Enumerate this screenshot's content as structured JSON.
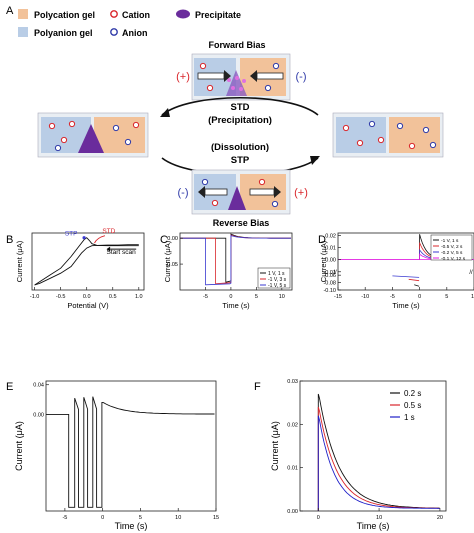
{
  "panel_letters": [
    "A",
    "B",
    "C",
    "D",
    "E",
    "F"
  ],
  "schematic": {
    "legend": {
      "polycation_gel": "Polycation gel",
      "polyanion_gel": "Polyanion gel",
      "cation": "Cation",
      "anion": "Anion",
      "precipitate": "Precipitate"
    },
    "forward_bias": "Forward Bias",
    "reverse_bias": "Reverse Bias",
    "plus": "(+)",
    "minus": "(-)",
    "std_line1": "STD",
    "std_line2": "(Precipitation)",
    "stp_line1": "(Dissolution)",
    "stp_line2": "STP",
    "colors": {
      "polycation": "#f2c29a",
      "polyanion": "#b9cde6",
      "cation": "#d9262b",
      "anion": "#2f3aa8",
      "precipitate": "#6a2c9c",
      "plus_text": "#d9262b",
      "minus_text": "#2f3aa8"
    }
  },
  "chart_data": [
    {
      "panel": "B",
      "type": "line",
      "xlabel": "Potential (V)",
      "ylabel": "Current (μA)",
      "xticks": [
        "-1.0",
        "-0.5",
        "0.0",
        "0.5",
        "1.0"
      ],
      "xlim": [
        -1.05,
        1.1
      ],
      "ylim": [
        -0.12,
        0.05
      ],
      "annotations": {
        "stp": "STP",
        "std": "STD",
        "start": "Start scan"
      },
      "series": [
        {
          "values_x": [
            -1.0,
            -0.9,
            -0.7,
            -0.5,
            -0.3,
            -0.15,
            -0.05,
            0.0,
            0.05,
            0.1,
            0.2,
            0.4,
            0.6,
            0.8,
            1.0
          ],
          "values_y": [
            -0.105,
            -0.095,
            -0.075,
            -0.055,
            -0.02,
            0.01,
            0.03,
            0.036,
            0.028,
            0.018,
            0.013,
            0.012,
            0.012,
            0.012,
            0.012
          ]
        },
        {
          "values_x": [
            1.0,
            0.8,
            0.6,
            0.4,
            0.2,
            0.1,
            0.0,
            -0.1,
            -0.3,
            -0.5,
            -0.7,
            -0.9,
            -1.0
          ],
          "values_y": [
            0.015,
            0.015,
            0.014,
            0.014,
            0.013,
            0.012,
            0.005,
            -0.01,
            -0.05,
            -0.07,
            -0.085,
            -0.1,
            -0.105
          ]
        }
      ]
    },
    {
      "panel": "C",
      "type": "line",
      "xlabel": "Time (s)",
      "ylabel": "Current (μA)",
      "xticks": [
        "-5",
        "0",
        "5",
        "10"
      ],
      "yticks": [
        "0.00",
        "-0.05"
      ],
      "xlim": [
        -10,
        12
      ],
      "ylim": [
        -0.1,
        0.01
      ],
      "series": [
        {
          "name": "1 V, 1 s",
          "color": "#111111",
          "step_start": -1,
          "low": -0.085,
          "peak": 0.008
        },
        {
          "name": "-1 V, 3 s",
          "color": "#d9262b",
          "step_start": -3,
          "low": -0.088,
          "peak": 0.006
        },
        {
          "name": "-1 V, 5 s",
          "color": "#3a3ad0",
          "step_start": -5,
          "low": -0.09,
          "peak": 0.005
        }
      ]
    },
    {
      "panel": "D",
      "type": "line",
      "xlabel": "Time (s)",
      "ylabel": "Current (μA)",
      "xticks": [
        "-15",
        "-10",
        "-5",
        "0",
        "5",
        "10"
      ],
      "yticks": [
        "0.02",
        "0.01",
        "0.00",
        "-0.01",
        "-0.06",
        "-0.08",
        "-0.10"
      ],
      "xlim": [
        -15,
        10
      ],
      "series": [
        {
          "name": "-1 V, 1 s",
          "color": "#111111"
        },
        {
          "name": "-0.5 V, 2 s",
          "color": "#d9262b"
        },
        {
          "name": "-0.2 V, 5 s",
          "color": "#3a3ad0"
        },
        {
          "name": "-0.1 V, 12 s",
          "color": "#e01ee0"
        }
      ]
    },
    {
      "panel": "E",
      "type": "line",
      "xlabel": "Time (s)",
      "ylabel": "Current (μA)",
      "xticks": [
        "-5",
        "0",
        "5",
        "10",
        "15"
      ],
      "yticks": [
        "0.04",
        "0.00"
      ],
      "xlim": [
        -7.5,
        15
      ],
      "ylim": [
        -0.13,
        0.045
      ],
      "pulses": [
        {
          "start": -4.5,
          "end": -3.7
        },
        {
          "start": -3.2,
          "end": -2.5
        },
        {
          "start": -2.0,
          "end": -1.3
        },
        {
          "start": -0.8,
          "end": -0.1
        }
      ],
      "low": -0.125,
      "peaks": [
        0.022,
        0.023,
        0.024,
        0.016
      ]
    },
    {
      "panel": "F",
      "type": "line",
      "xlabel": "Time (s)",
      "ylabel": "Current (μA)",
      "xticks": [
        "0",
        "10",
        "20"
      ],
      "yticks": [
        "0.00",
        "0.01",
        "0.02",
        "0.03"
      ],
      "xlim": [
        -3,
        21
      ],
      "ylim": [
        0,
        0.03
      ],
      "series": [
        {
          "name": "0.2 s",
          "color": "#111111",
          "peak": 0.027,
          "tau": 3.3
        },
        {
          "name": "0.5 s",
          "color": "#d9262b",
          "peak": 0.024,
          "tau": 3.0
        },
        {
          "name": "1 s",
          "color": "#2020c8",
          "peak": 0.022,
          "tau": 2.6
        }
      ]
    }
  ]
}
